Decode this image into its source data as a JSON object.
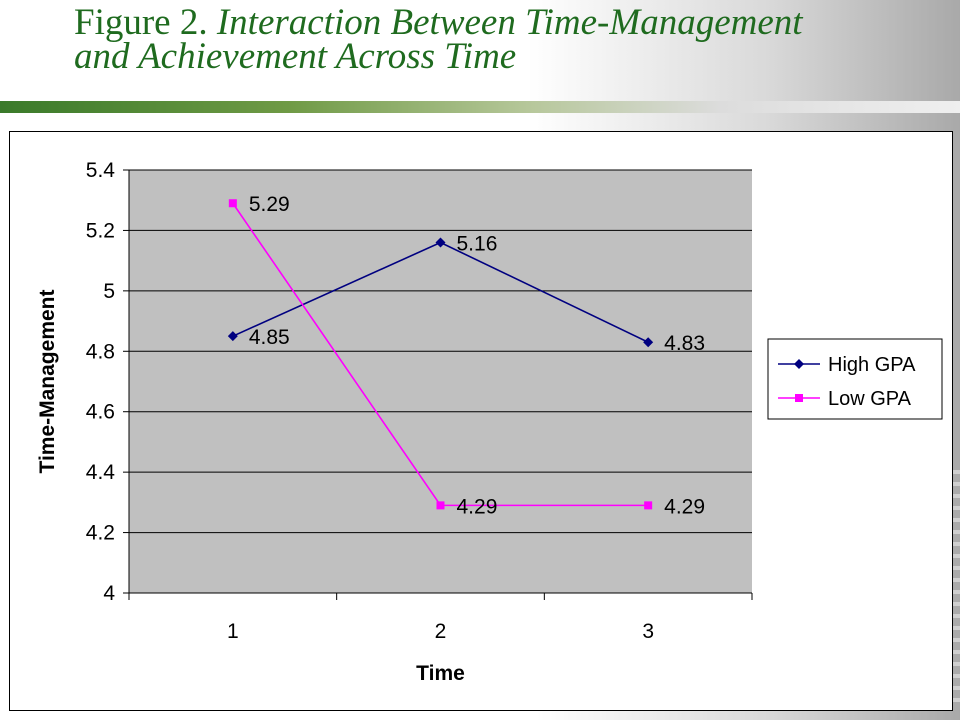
{
  "slide": {
    "title_prefix": "Figure 2.",
    "title_line1": "Interaction Between Time-Management",
    "title_line2": "and Achievement Across Time"
  },
  "colors": {
    "title": "#1f6b1f",
    "plot_background": "#c0c0c0",
    "high_gpa": "#000080",
    "low_gpa": "#ff00ff"
  },
  "chart_data": {
    "type": "line",
    "title": "",
    "xlabel": "Time",
    "ylabel": "Time-Management",
    "categories": [
      "1",
      "2",
      "3"
    ],
    "ylim": [
      4,
      5.4
    ],
    "yticks": [
      4,
      4.2,
      4.4,
      4.6,
      4.8,
      5,
      5.2,
      5.4
    ],
    "ytick_labels": [
      "4",
      "4.2",
      "4.4",
      "4.6",
      "4.8",
      "5",
      "5.2",
      "5.4"
    ],
    "grid": true,
    "legend_position": "right",
    "series": [
      {
        "name": "High GPA",
        "values": [
          4.85,
          5.16,
          4.83
        ],
        "labels": [
          "4.85",
          "5.16",
          "4.83"
        ],
        "color": "#000080",
        "marker": "diamond"
      },
      {
        "name": "Low GPA",
        "values": [
          5.29,
          4.29,
          4.29
        ],
        "labels": [
          "5.29",
          "4.29",
          "4.29"
        ],
        "color": "#ff00ff",
        "marker": "square"
      }
    ]
  }
}
